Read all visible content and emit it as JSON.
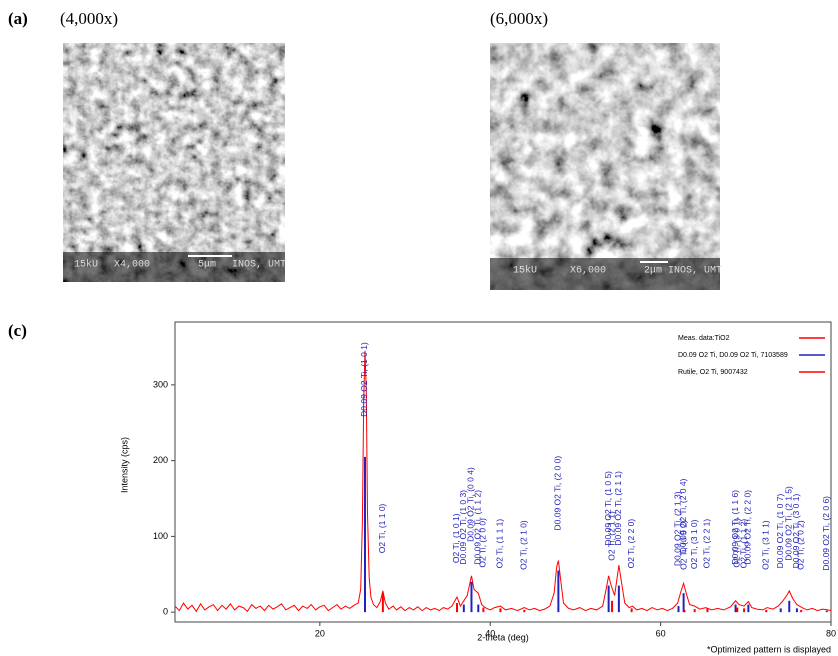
{
  "panels": {
    "a_label": "(a)",
    "left_caption": "(4,000x)",
    "right_caption": "(6,000x)",
    "c_label": "(c)",
    "left_image": {
      "voltage": "15kU",
      "magnification": "X4,000",
      "scale": "5μm",
      "lab": "INOS, UMT"
    },
    "right_image": {
      "voltage": "15kU",
      "magnification": "X6,000",
      "scale": "2μm",
      "lab": "INOS, UMT"
    }
  },
  "chart_data": {
    "type": "line",
    "x_label": "2-theta (deg)",
    "y_label": "Intensity (cps)",
    "footnote": "*Optimized pattern is displayed",
    "xlim": [
      3,
      80
    ],
    "xticks": [
      20,
      40,
      60,
      80
    ],
    "ylim": [
      -13,
      383
    ],
    "yticks": [
      0,
      100,
      200,
      300
    ],
    "legend": "top-right",
    "series": [
      {
        "name": "Meas. data:TiO2",
        "color": "#ff0000",
        "style": "line",
        "x": [
          3,
          3.5,
          4,
          4.5,
          5,
          5.5,
          6,
          6.5,
          7,
          7.5,
          8,
          8.5,
          9,
          9.5,
          10,
          10.5,
          11,
          11.5,
          12,
          12.5,
          13,
          13.5,
          14,
          14.5,
          15,
          15.5,
          16,
          16.5,
          17,
          17.5,
          18,
          18.5,
          19,
          19.5,
          20,
          20.5,
          21,
          21.5,
          22,
          22.5,
          23,
          23.5,
          24,
          24.5,
          24.8,
          25.0,
          25.15,
          25.3,
          25.45,
          25.6,
          25.8,
          26.0,
          26.3,
          26.7,
          27.1,
          27.4,
          27.7,
          28.1,
          28.6,
          29,
          29.5,
          30,
          30.5,
          31,
          31.5,
          32,
          32.5,
          33,
          33.5,
          34,
          34.5,
          35,
          35.5,
          36.1,
          36.5,
          36.9,
          37.3,
          37.8,
          38.1,
          38.6,
          39.0,
          39.4,
          40,
          40.5,
          41.2,
          41.8,
          42.5,
          43.2,
          44,
          44.6,
          45.2,
          45.8,
          46.4,
          47.0,
          47.5,
          47.8,
          48.0,
          48.3,
          48.6,
          49.2,
          49.8,
          50.5,
          51.2,
          51.8,
          52.5,
          53.2,
          53.6,
          53.9,
          54.2,
          54.6,
          55.1,
          55.4,
          55.8,
          56.3,
          56.7,
          57.2,
          57.8,
          58.4,
          59,
          59.6,
          60.2,
          60.8,
          61.4,
          62.0,
          62.4,
          62.7,
          63.0,
          63.4,
          64.0,
          64.6,
          65.3,
          66,
          66.7,
          67.4,
          68.2,
          68.8,
          69.2,
          69.8,
          70.3,
          70.7,
          71.3,
          72,
          72.5,
          73.2,
          73.8,
          74.3,
          74.8,
          75.1,
          75.5,
          76.0,
          76.6,
          77.2,
          77.8,
          78.4,
          79,
          79.6,
          80
        ],
        "values": [
          8,
          2,
          12,
          4,
          9,
          1,
          11,
          3,
          7,
          10,
          2,
          9,
          4,
          11,
          3,
          8,
          6,
          1,
          10,
          5,
          8,
          2,
          9,
          4,
          7,
          11,
          3,
          6,
          9,
          2,
          8,
          5,
          10,
          3,
          7,
          9,
          2,
          6,
          10,
          4,
          8,
          5,
          9,
          12,
          30,
          120,
          280,
          345,
          290,
          130,
          45,
          20,
          10,
          6,
          14,
          28,
          12,
          4,
          8,
          3,
          7,
          2,
          6,
          3,
          7,
          2,
          6,
          3,
          5,
          2,
          6,
          4,
          8,
          20,
          8,
          15,
          22,
          48,
          30,
          25,
          10,
          6,
          3,
          6,
          8,
          3,
          5,
          2,
          6,
          3,
          5,
          2,
          4,
          8,
          25,
          60,
          68,
          40,
          12,
          5,
          3,
          6,
          2,
          5,
          3,
          8,
          30,
          48,
          35,
          22,
          62,
          40,
          12,
          6,
          8,
          3,
          5,
          2,
          6,
          3,
          5,
          2,
          5,
          12,
          28,
          38,
          25,
          10,
          8,
          4,
          6,
          3,
          5,
          3,
          7,
          15,
          10,
          8,
          14,
          6,
          4,
          3,
          6,
          4,
          8,
          14,
          22,
          28,
          18,
          10,
          6,
          3,
          5,
          2,
          4,
          3,
          2
        ]
      },
      {
        "name": "D0.09 O2 Ti, D0.09 O2 Ti, 7103589",
        "color": "#2222bb",
        "style": "sticks",
        "x": [
          25.3,
          36.9,
          37.8,
          38.6,
          48.0,
          53.9,
          55.1,
          62.1,
          62.7,
          68.8,
          70.3,
          74.1,
          75.1,
          76.0,
          79.5
        ],
        "values": [
          205,
          10,
          40,
          10,
          55,
          35,
          35,
          8,
          25,
          10,
          10,
          5,
          15,
          5,
          2
        ],
        "labels": [
          "D0.09 O2 Ti, (1 0 1)",
          "D0.09 O2 Ti, (1 0 3)",
          "D0.09 O2 Ti, (0 0 4)",
          "D0.09 O2 Ti, (1 1 2)",
          "D0.09 O2 Ti, (2 0 0)",
          "D0.09 O2 Ti, (1 0 5)",
          "D0.09 O2 Ti, (2 1 1)",
          "D0.09 O2 Ti, (2 1 3)",
          "D0.09 O2 Ti, (2 0 4)",
          "D0.09 O2 Ti, (1 1 6)",
          "D0.09 O2 Ti, (2 2 0)",
          "D0.09 O2 Ti, (1 0 7)",
          "D0.09 O2 Ti, (2 1 5)",
          "D0.09 O2 Ti, (3 0 1)",
          "D0.09 O2 Ti, (2 0 6)"
        ]
      },
      {
        "name": "Rutile, O2 Ti, 9007432",
        "color": "#ff0000",
        "style": "sticks",
        "x": [
          27.4,
          36.1,
          39.2,
          41.2,
          44.0,
          54.3,
          56.6,
          62.8,
          64.0,
          65.5,
          69.0,
          69.8,
          72.4,
          76.5
        ],
        "values": [
          25,
          12,
          6,
          5,
          3,
          15,
          5,
          3,
          4,
          5,
          6,
          5,
          3,
          3
        ],
        "labels": [
          "O2 Ti, (1 1 0)",
          "O2 Ti, (1 0 1)",
          "O2 Ti, (2 0 0)",
          "O2 Ti, (1 1 1)",
          "O2 Ti, (2 1 0)",
          "O2 Ti, (2 1 1)",
          "O2 Ti, (2 2 0)",
          "O2 Ti, (0 0 2)",
          "O2 Ti, (3 1 0)",
          "O2 Ti, (2 2 1)",
          "O2 Ti, (3 0 1)",
          "O2 Ti, (1 1 2)",
          "O2 Ti, (3 1 1)",
          "O2 Ti, (2 0 2)"
        ]
      }
    ]
  }
}
